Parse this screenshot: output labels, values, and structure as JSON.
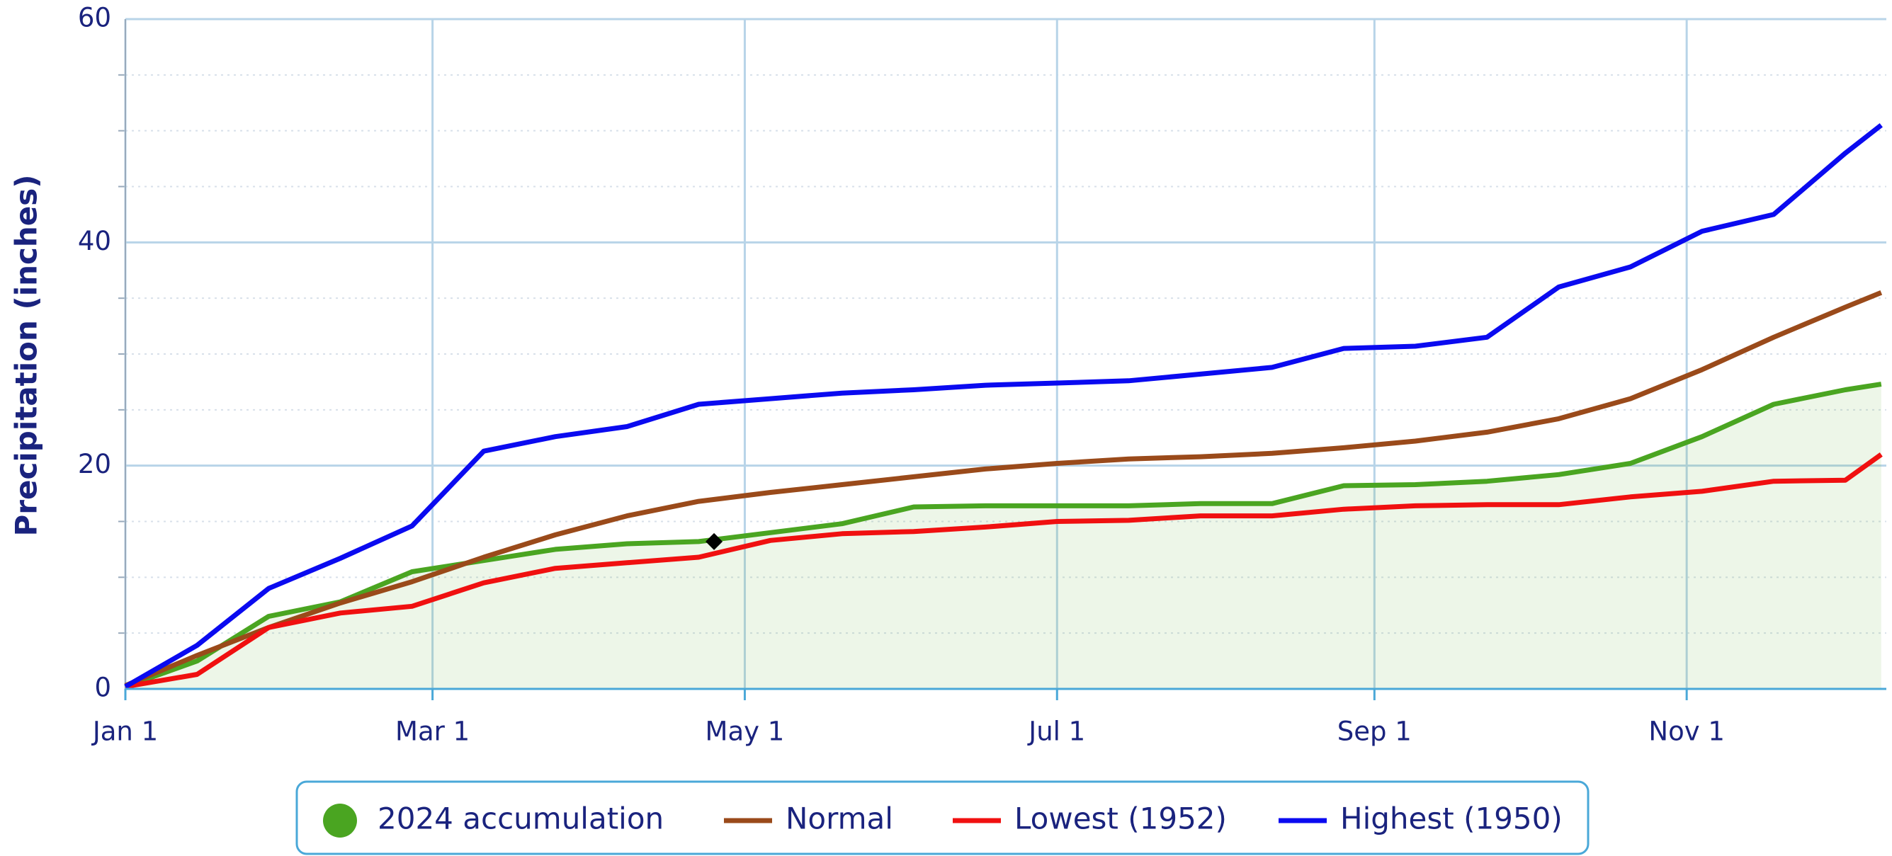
{
  "chart_data": {
    "type": "line",
    "y_label": "Precipitation (inches)",
    "x": [
      0,
      14,
      28,
      42,
      56,
      70,
      84,
      98,
      112,
      126,
      140,
      154,
      168,
      182,
      196,
      210,
      224,
      238,
      252,
      266,
      280,
      294,
      308,
      322,
      336,
      343
    ],
    "xlim": [
      0,
      344
    ],
    "xticks": [
      {
        "value": 0,
        "label": "Jan 1"
      },
      {
        "value": 60,
        "label": "Mar 1"
      },
      {
        "value": 121,
        "label": "May 1"
      },
      {
        "value": 182,
        "label": "Jul 1"
      },
      {
        "value": 244,
        "label": "Sep 1"
      },
      {
        "value": 305,
        "label": "Nov 1"
      }
    ],
    "ylim": [
      0,
      60
    ],
    "yticks": [
      0,
      20,
      40,
      60
    ],
    "minor_yticks": [
      5,
      10,
      15,
      25,
      30,
      35,
      45,
      50,
      55
    ],
    "grid": true,
    "legend": "bottom",
    "series": [
      {
        "name": "2024 accumulation",
        "color": "#4aa521",
        "area": true,
        "values": [
          0.2,
          2.5,
          6.5,
          7.8,
          10.5,
          11.5,
          12.5,
          13,
          13.2,
          14,
          14.8,
          16.3,
          16.4,
          16.4,
          16.4,
          16.6,
          16.6,
          18.2,
          18.3,
          18.6,
          19.2,
          20.2,
          22.6,
          25.5,
          26.8,
          27.3
        ]
      },
      {
        "name": "Normal",
        "color": "#9a4a1a",
        "values": [
          0.3,
          3,
          5.5,
          7.7,
          9.6,
          11.8,
          13.8,
          15.5,
          16.8,
          17.6,
          18.3,
          19,
          19.7,
          20.2,
          20.6,
          20.8,
          21.1,
          21.6,
          22.2,
          23,
          24.2,
          26,
          28.6,
          31.5,
          34.2,
          35.5
        ]
      },
      {
        "name": "Lowest (1952)",
        "color": "#f01010",
        "values": [
          0.2,
          1.3,
          5.5,
          6.8,
          7.4,
          9.5,
          10.8,
          11.3,
          11.8,
          13.3,
          13.9,
          14.1,
          14.5,
          15,
          15.1,
          15.5,
          15.5,
          16.1,
          16.4,
          16.5,
          16.5,
          17.2,
          17.7,
          18.6,
          18.7,
          21
        ]
      },
      {
        "name": "Highest (1950)",
        "color": "#0a0af0",
        "values": [
          0.2,
          3.9,
          9,
          11.7,
          14.6,
          21.3,
          22.6,
          23.5,
          25.5,
          26,
          26.5,
          26.8,
          27.2,
          27.4,
          27.6,
          28.2,
          28.8,
          30.5,
          30.7,
          31.5,
          36,
          37.8,
          41,
          42.5,
          48,
          50.5
        ]
      }
    ],
    "highlight": {
      "x": 115,
      "y": 13.2
    }
  }
}
